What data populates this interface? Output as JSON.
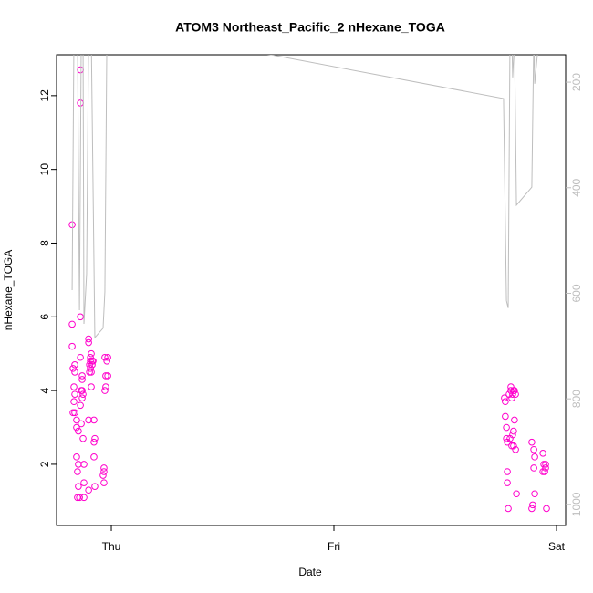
{
  "chart_data": {
    "type": "scatter",
    "title": "ATOM3 Northeast_Pacific_2 nHexane_TOGA",
    "x_label": "Date",
    "y_label": "nHexane_TOGA",
    "xlim": [
      -0.246,
      2.041
    ],
    "xticks": [
      {
        "value": 0,
        "label": "Thu"
      },
      {
        "value": 1,
        "label": "Fri"
      },
      {
        "value": 2,
        "label": "Sat"
      }
    ],
    "ylim": [
      0.34,
      13.11
    ],
    "yticks": [
      2,
      4,
      6,
      8,
      10,
      12
    ],
    "y2lim": [
      1040,
      148
    ],
    "y2ticks": [
      200,
      400,
      600,
      800,
      1000
    ],
    "series": [
      {
        "color": "#ff00cc",
        "x": [
          -0.176,
          -0.176,
          -0.176,
          -0.172,
          -0.164,
          -0.164,
          -0.168,
          -0.164,
          -0.168,
          -0.172,
          -0.164,
          -0.156,
          -0.156,
          -0.148,
          -0.156,
          -0.148,
          -0.152,
          -0.148,
          -0.152,
          -0.143,
          -0.139,
          -0.139,
          -0.139,
          -0.139,
          -0.135,
          -0.131,
          -0.131,
          -0.131,
          -0.131,
          -0.127,
          -0.139,
          -0.135,
          -0.127,
          -0.123,
          -0.123,
          -0.123,
          -0.102,
          -0.102,
          -0.094,
          -0.094,
          -0.098,
          -0.09,
          -0.086,
          -0.094,
          -0.09,
          -0.098,
          -0.086,
          -0.09,
          -0.102,
          -0.078,
          -0.074,
          -0.078,
          -0.078,
          -0.074,
          -0.102,
          -0.082,
          -0.029,
          -0.016,
          -0.02,
          -0.025,
          -0.016,
          -0.025,
          -0.029,
          -0.033,
          -0.033,
          -0.037,
          -0.033,
          1.766,
          1.77,
          1.77,
          1.775,
          1.775,
          1.779,
          1.779,
          1.779,
          1.783,
          1.787,
          1.795,
          1.795,
          1.799,
          1.803,
          1.807,
          1.811,
          1.816,
          1.803,
          1.807,
          1.791,
          1.799,
          1.807,
          1.816,
          1.811,
          1.82,
          1.889,
          1.898,
          1.902,
          1.898,
          1.902,
          1.893,
          1.889,
          1.939,
          1.943,
          1.951,
          1.939,
          1.947,
          1.951,
          1.955
        ],
        "values": [
          8.5,
          5.8,
          5.2,
          4.6,
          4.7,
          4.5,
          4.1,
          3.9,
          3.7,
          3.4,
          3.4,
          3.2,
          3.0,
          2.9,
          2.2,
          2.0,
          1.8,
          1.4,
          1.1,
          1.1,
          12.7,
          11.8,
          6.0,
          4.9,
          4.0,
          4.0,
          4.4,
          4.3,
          3.8,
          3.9,
          3.6,
          3.1,
          2.7,
          2.0,
          1.5,
          1.1,
          5.4,
          5.3,
          4.9,
          4.8,
          4.7,
          5.0,
          4.7,
          4.6,
          4.5,
          4.5,
          4.8,
          4.1,
          3.2,
          3.2,
          2.7,
          2.6,
          2.2,
          1.4,
          1.3,
          4.8,
          4.9,
          4.9,
          4.8,
          4.4,
          4.4,
          4.1,
          4.0,
          1.9,
          1.8,
          1.7,
          1.5,
          3.8,
          3.7,
          3.3,
          3.0,
          2.7,
          2.6,
          1.8,
          1.5,
          0.8,
          3.9,
          4.1,
          4.0,
          3.8,
          3.9,
          4.0,
          4.0,
          3.9,
          2.8,
          2.9,
          2.7,
          2.5,
          2.5,
          2.4,
          3.2,
          1.2,
          2.6,
          2.4,
          2.2,
          1.9,
          1.2,
          0.9,
          0.8,
          2.3,
          2.0,
          2.0,
          1.8,
          1.8,
          1.9,
          0.8
        ]
      },
      {
        "type": "line",
        "axis": "y2",
        "color": "#bebebe",
        "x": [
          -0.176,
          -0.168,
          -0.152,
          -0.143,
          -0.135,
          -0.127,
          -0.123,
          -0.111,
          -0.102,
          -0.09,
          -0.074,
          -0.037,
          -0.029,
          -0.02,
          0.717,
          1.762,
          1.775,
          1.783,
          1.791,
          1.799,
          1.803,
          1.811,
          1.82,
          1.889,
          1.898,
          1.902,
          1.914,
          1.922
        ],
        "values": [
          594,
          114,
          114,
          632,
          114,
          114,
          658,
          563,
          114,
          114,
          684,
          666,
          597,
          114,
          148,
          231,
          614,
          628,
          114,
          114,
          191,
          114,
          433,
          399,
          114,
          203,
          148,
          114
        ]
      }
    ]
  }
}
